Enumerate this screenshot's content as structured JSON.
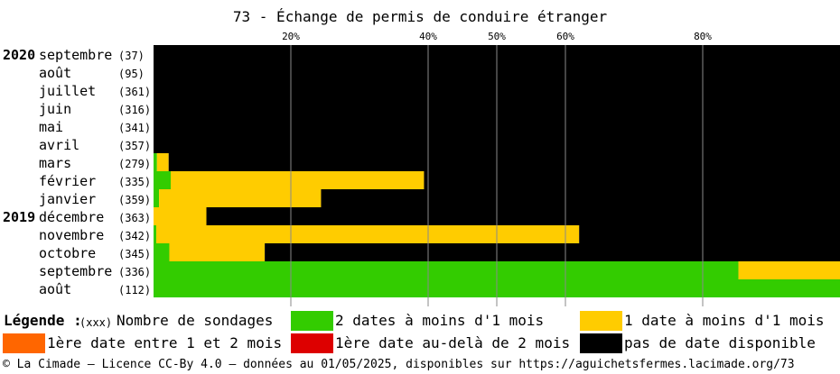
{
  "chart_data": {
    "type": "bar",
    "stacked": true,
    "orientation": "horizontal",
    "title": "73 - Échange de permis de conduire étranger",
    "x_ticks": [
      "20%",
      "40%",
      "50%",
      "60%",
      "80%"
    ],
    "xlim": [
      0,
      100
    ],
    "grid": true,
    "rows": [
      {
        "year": "2020",
        "month": "septembre",
        "count": "(37)",
        "values": {
          "green": 0,
          "yellow": 0,
          "black": 100
        }
      },
      {
        "year": "",
        "month": "août",
        "count": "(95)",
        "values": {
          "green": 0,
          "yellow": 0,
          "black": 100
        }
      },
      {
        "year": "",
        "month": "juillet",
        "count": "(361)",
        "values": {
          "green": 0,
          "yellow": 0,
          "black": 100
        }
      },
      {
        "year": "",
        "month": "juin",
        "count": "(316)",
        "values": {
          "green": 0,
          "yellow": 0,
          "black": 100
        }
      },
      {
        "year": "",
        "month": "mai",
        "count": "(341)",
        "values": {
          "green": 0,
          "yellow": 0,
          "black": 100
        }
      },
      {
        "year": "",
        "month": "avril",
        "count": "(357)",
        "values": {
          "green": 0,
          "yellow": 0,
          "black": 100
        }
      },
      {
        "year": "",
        "month": "mars",
        "count": "(279)",
        "values": {
          "green": 0.5,
          "yellow": 1.7,
          "black": 97.8
        }
      },
      {
        "year": "",
        "month": "février",
        "count": "(335)",
        "values": {
          "green": 2.5,
          "yellow": 36.9,
          "black": 60.6
        }
      },
      {
        "year": "",
        "month": "janvier",
        "count": "(359)",
        "values": {
          "green": 0.8,
          "yellow": 23.6,
          "black": 75.6
        }
      },
      {
        "year": "2019",
        "month": "décembre",
        "count": "(363)",
        "values": {
          "green": 0,
          "yellow": 7.7,
          "black": 92.3
        }
      },
      {
        "year": "",
        "month": "novembre",
        "count": "(342)",
        "values": {
          "green": 0.4,
          "yellow": 61.6,
          "black": 38
        }
      },
      {
        "year": "",
        "month": "octobre",
        "count": "(345)",
        "values": {
          "green": 2.3,
          "yellow": 13.9,
          "black": 83.8
        }
      },
      {
        "year": "",
        "month": "septembre",
        "count": "(336)",
        "values": {
          "green": 85.2,
          "yellow": 14.8,
          "black": 0
        }
      },
      {
        "year": "",
        "month": "août",
        "count": "(112)",
        "values": {
          "green": 100,
          "yellow": 0,
          "black": 0
        }
      }
    ],
    "series": [
      {
        "key": "green",
        "name": "2 dates à moins d'1 mois",
        "color": "#33cc00"
      },
      {
        "key": "yellow",
        "name": "1 date à moins d'1 mois",
        "color": "#ffcc00"
      },
      {
        "key": "orange",
        "name": "1ère date entre 1 et 2 mois",
        "color": "#ff6600"
      },
      {
        "key": "red",
        "name": "1ère date au-delà de 2 mois",
        "color": "#dd0000"
      },
      {
        "key": "black",
        "name": "pas de date disponible",
        "color": "#000000"
      }
    ]
  },
  "legend": {
    "heading": "Légende :",
    "count_hint": "(xxx)",
    "count_label": "Nombre de sondages",
    "items": [
      {
        "label": "2 dates à moins d'1 mois",
        "color": "#33cc00"
      },
      {
        "label": "1 date à moins d'1 mois",
        "color": "#ffcc00"
      },
      {
        "label": "1ère date entre 1 et 2 mois",
        "color": "#ff6600"
      },
      {
        "label": "1ère date au-delà de 2 mois",
        "color": "#dd0000"
      },
      {
        "label": "pas de date disponible",
        "color": "#000000"
      }
    ]
  },
  "footer": "© La Cimade – Licence CC-By 4.0 – données au 01/05/2025, disponibles sur https://aguichetsfermes.lacimade.org/73"
}
